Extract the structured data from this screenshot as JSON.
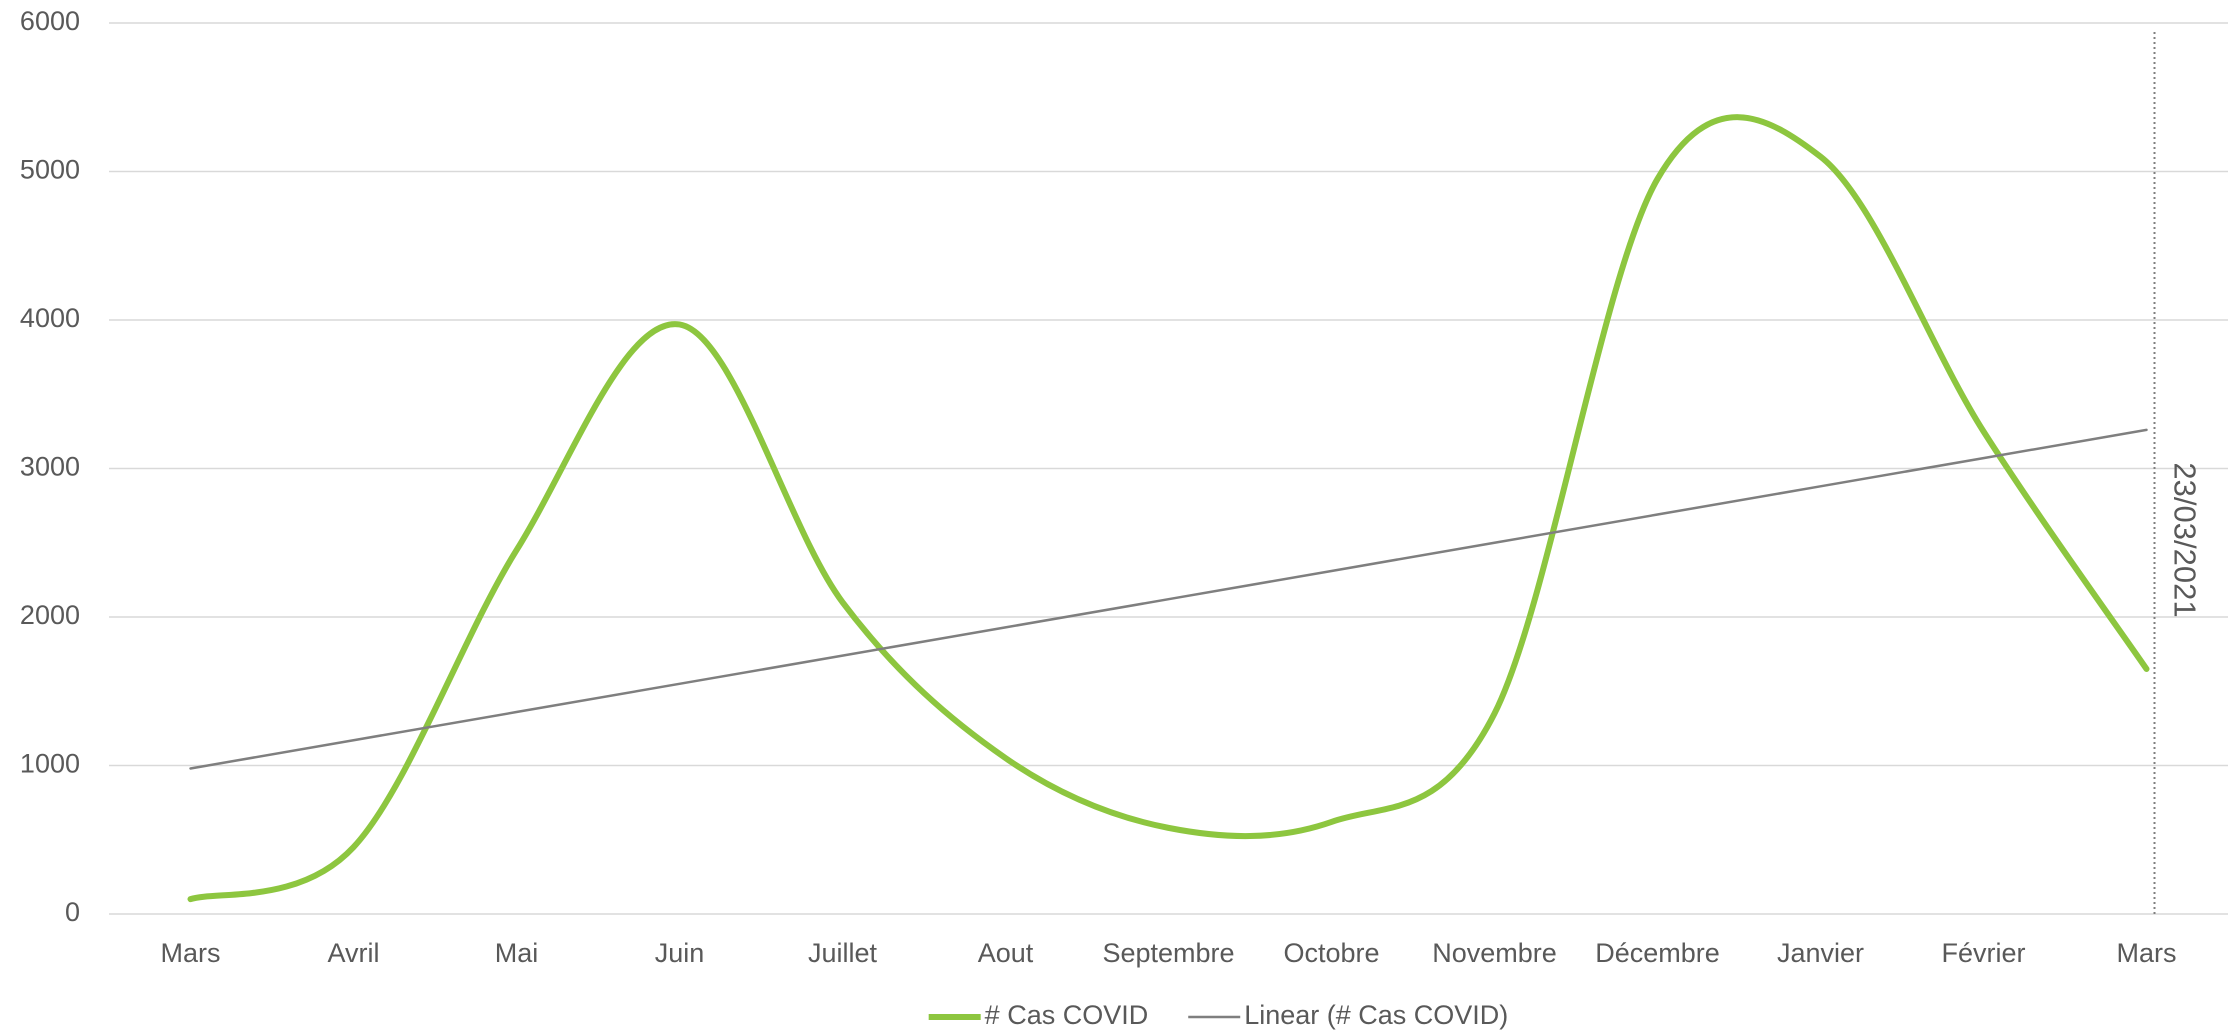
{
  "chart_data": {
    "type": "line",
    "categories": [
      "Mars",
      "Avril",
      "Mai",
      "Juin",
      "Juillet",
      "Aout",
      "Septembre",
      "Octobre",
      "Novembre",
      "Décembre",
      "Janvier",
      "Février",
      "Mars"
    ],
    "series": [
      {
        "name": "# Cas COVID",
        "color": "#8dc63f",
        "smooth": true,
        "values": [
          100,
          450,
          2450,
          3970,
          2100,
          1050,
          580,
          620,
          1350,
          4950,
          5100,
          3250,
          1650
        ]
      },
      {
        "name": "Linear (# Cas COVID)",
        "color": "#7f7f7f",
        "smooth": false,
        "values": [
          980,
          1170,
          1360,
          1550,
          1740,
          1930,
          2120,
          2310,
          2500,
          2690,
          2880,
          3070,
          3260
        ]
      }
    ],
    "ylim": [
      0,
      6000
    ],
    "yticks": [
      0,
      1000,
      2000,
      3000,
      4000,
      5000,
      6000
    ],
    "grid": true,
    "annotation": "23/03/2021",
    "legend": "bottom"
  }
}
